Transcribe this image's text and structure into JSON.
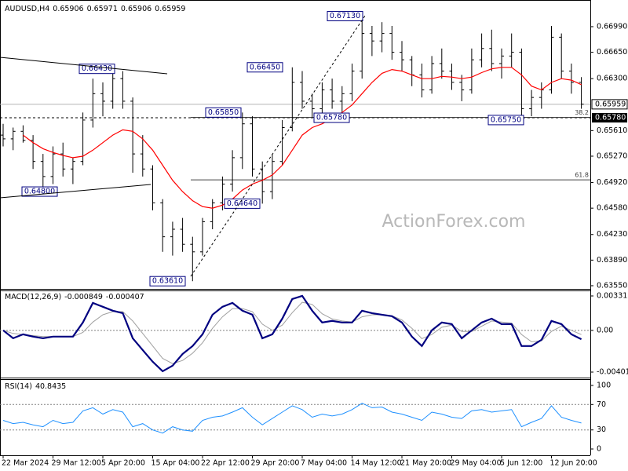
{
  "chart_data": [
    {
      "type": "ohlc",
      "title": "AUDUSD,H4",
      "header_values": [
        0.65906,
        0.65971,
        0.65906,
        0.65959
      ],
      "color": "#000000",
      "open": [
        0.6555,
        0.655,
        0.656,
        0.6548,
        0.652,
        0.65,
        0.653,
        0.651,
        0.652,
        0.6575,
        0.661,
        0.66,
        0.663,
        0.66,
        0.653,
        0.651,
        0.6465,
        0.642,
        0.643,
        0.641,
        0.64,
        0.644,
        0.6465,
        0.649,
        0.6525,
        0.657,
        0.651,
        0.648,
        0.652,
        0.6565,
        0.6625,
        0.66,
        0.659,
        0.6615,
        0.66,
        0.661,
        0.664,
        0.669,
        0.668,
        0.669,
        0.6665,
        0.6655,
        0.6635,
        0.6615,
        0.665,
        0.664,
        0.6625,
        0.6615,
        0.6655,
        0.667,
        0.665,
        0.666,
        0.6665,
        0.659,
        0.6605,
        0.6615,
        0.6685,
        0.664,
        0.6625
      ],
      "high": [
        0.657,
        0.6565,
        0.6568,
        0.6555,
        0.653,
        0.654,
        0.6545,
        0.6525,
        0.6585,
        0.663,
        0.6625,
        0.6643,
        0.664,
        0.6605,
        0.6555,
        0.6515,
        0.647,
        0.644,
        0.6445,
        0.642,
        0.6445,
        0.647,
        0.65,
        0.6535,
        0.6585,
        0.658,
        0.652,
        0.653,
        0.6575,
        0.6645,
        0.664,
        0.661,
        0.6625,
        0.663,
        0.662,
        0.665,
        0.6713,
        0.67,
        0.6705,
        0.67,
        0.668,
        0.666,
        0.665,
        0.666,
        0.667,
        0.665,
        0.6635,
        0.667,
        0.669,
        0.6695,
        0.667,
        0.669,
        0.667,
        0.6615,
        0.6625,
        0.67,
        0.669,
        0.665,
        0.6632
      ],
      "low": [
        0.654,
        0.6535,
        0.6545,
        0.651,
        0.648,
        0.649,
        0.65,
        0.649,
        0.6515,
        0.6565,
        0.658,
        0.659,
        0.659,
        0.6505,
        0.65,
        0.6455,
        0.64,
        0.6395,
        0.64,
        0.6361,
        0.6395,
        0.643,
        0.6455,
        0.648,
        0.651,
        0.65,
        0.6464,
        0.647,
        0.6515,
        0.656,
        0.659,
        0.6578,
        0.658,
        0.659,
        0.6585,
        0.66,
        0.663,
        0.666,
        0.6665,
        0.6655,
        0.664,
        0.662,
        0.6605,
        0.661,
        0.663,
        0.6615,
        0.66,
        0.661,
        0.6645,
        0.664,
        0.663,
        0.6645,
        0.6575,
        0.658,
        0.659,
        0.661,
        0.663,
        0.661,
        0.659
      ],
      "close": [
        0.655,
        0.656,
        0.6548,
        0.652,
        0.65,
        0.653,
        0.651,
        0.652,
        0.6575,
        0.661,
        0.66,
        0.663,
        0.66,
        0.653,
        0.651,
        0.6465,
        0.642,
        0.643,
        0.641,
        0.64,
        0.644,
        0.6465,
        0.649,
        0.6525,
        0.657,
        0.651,
        0.648,
        0.652,
        0.6565,
        0.6625,
        0.66,
        0.659,
        0.6615,
        0.66,
        0.661,
        0.664,
        0.669,
        0.668,
        0.669,
        0.6665,
        0.6655,
        0.6635,
        0.6615,
        0.665,
        0.664,
        0.6625,
        0.6615,
        0.6655,
        0.667,
        0.665,
        0.666,
        0.6665,
        0.659,
        0.6605,
        0.6615,
        0.6685,
        0.664,
        0.6625,
        0.6596
      ],
      "ma": {
        "color": "#ff0000",
        "values": [
          null,
          null,
          0.6555,
          0.6545,
          0.6537,
          0.6532,
          0.6528,
          0.6525,
          0.6527,
          0.6535,
          0.6545,
          0.6555,
          0.6562,
          0.656,
          0.655,
          0.6535,
          0.6515,
          0.6495,
          0.648,
          0.6468,
          0.646,
          0.6458,
          0.6462,
          0.647,
          0.6482,
          0.649,
          0.6495,
          0.6502,
          0.6515,
          0.6535,
          0.6555,
          0.6565,
          0.657,
          0.6577,
          0.6585,
          0.6595,
          0.661,
          0.6625,
          0.6637,
          0.6642,
          0.664,
          0.6635,
          0.663,
          0.663,
          0.6633,
          0.6632,
          0.663,
          0.6632,
          0.6638,
          0.6643,
          0.6645,
          0.6645,
          0.6635,
          0.662,
          0.6615,
          0.6625,
          0.663,
          0.6628,
          0.6622
        ]
      },
      "ylim": [
        0.63508,
        0.67344
      ],
      "yticks": [
        {
          "value": 0.6699,
          "label": "0.66990"
        },
        {
          "value": 0.6665,
          "label": "0.66650"
        },
        {
          "value": 0.663,
          "label": "0.66300"
        },
        {
          "value": 0.6561,
          "label": "0.65610"
        },
        {
          "value": 0.6527,
          "label": "0.65270"
        },
        {
          "value": 0.6492,
          "label": "0.64920"
        },
        {
          "value": 0.6458,
          "label": "0.64580"
        },
        {
          "value": 0.6423,
          "label": "0.64230"
        },
        {
          "value": 0.6389,
          "label": "0.63890"
        },
        {
          "value": 0.6355,
          "label": "0.63550"
        }
      ],
      "last_price": {
        "value": 0.65959,
        "label": "0.65959"
      },
      "support": {
        "value": 0.6578,
        "label": "0.65780"
      },
      "fib": [
        {
          "ratio": 38.2,
          "price": 0.65785
        },
        {
          "ratio": 61.8,
          "price": 0.64955
        }
      ],
      "annotations": [
        {
          "value": 0.6643,
          "label": "0.66430"
        },
        {
          "value": 0.648,
          "label": "0.64800"
        },
        {
          "value": 0.6361,
          "label": "0.63610"
        },
        {
          "value": 0.6464,
          "label": "0.64640"
        },
        {
          "value": 0.6585,
          "label": "0.65850"
        },
        {
          "value": 0.6645,
          "label": "0.66450"
        },
        {
          "value": 0.6578,
          "label": "0.65780"
        },
        {
          "value": 0.6713,
          "label": "0.67130"
        },
        {
          "value": 0.6575,
          "label": "0.65750"
        }
      ],
      "watermark": "ActionForex.com"
    },
    {
      "type": "line",
      "title": "MACD(12,26,9)",
      "header_values": [
        -0.000849,
        -0.000407
      ],
      "series": [
        {
          "color": "#a0a0a0",
          "values": [
            0,
            -0.0003,
            -0.0004,
            -0.0005,
            -0.0006,
            -0.0006,
            -0.0006,
            -0.0006,
            -0.0002,
            0.0008,
            0.0015,
            0.0018,
            0.0018,
            0.0009,
            -0.0003,
            -0.0015,
            -0.0027,
            -0.0032,
            -0.0029,
            -0.0022,
            -0.0012,
            0.0002,
            0.0013,
            0.0021,
            0.0021,
            0.0018,
            0.0006,
            0,
            0.0005,
            0.0017,
            0.0027,
            0.0025,
            0.0016,
            0.0011,
            0.0009,
            0.0008,
            0.0013,
            0.0015,
            0.0015,
            0.0014,
            0.001,
            0.0002,
            -0.0008,
            -0.0004,
            0.0003,
            0.0005,
            -0.0001,
            -0.0001,
            0.0004,
            0.0009,
            0.0008,
            0.0007,
            -0.0004,
            -0.0011,
            -0.001,
            -0.0001,
            0.0004,
            0,
            -0.000407
          ]
        },
        {
          "color": "#000080",
          "values": [
            0,
            -0.00076,
            -0.00038,
            -0.0006,
            -0.00076,
            -0.0006,
            -0.0006,
            -0.0006,
            0.00076,
            0.00264,
            0.00227,
            0.00189,
            0.00166,
            -0.00076,
            -0.00189,
            -0.00302,
            -0.00393,
            -0.0034,
            -0.00227,
            -0.00151,
            -0.00038,
            0.00151,
            0.00227,
            0.00264,
            0.00189,
            0.00151,
            -0.00076,
            -0.00038,
            0.00113,
            0.00302,
            0.00332,
            0.00189,
            0.00076,
            0.00091,
            0.00076,
            0.00076,
            0.00189,
            0.00166,
            0.00151,
            0.00136,
            0.00076,
            -0.0006,
            -0.00151,
            0,
            0.00076,
            0.0006,
            -0.00076,
            0,
            0.00076,
            0.00113,
            0.0006,
            0.0006,
            -0.00151,
            -0.00151,
            -0.00091,
            0.00091,
            0.0006,
            -0.00038,
            -0.000849
          ]
        }
      ],
      "ylim": [
        -0.004545,
        0.003842
      ],
      "yticks": [
        0.003313,
        {
          "value": 0,
          "label": "0.00"
        },
        -0.004016
      ],
      "levels": [
        0
      ]
    },
    {
      "type": "line",
      "title": "RSI(14)",
      "header_values": [
        40.8435
      ],
      "series": [
        {
          "color": "#1e90ff",
          "values": [
            45,
            40,
            42,
            38,
            35,
            45,
            40,
            42,
            60,
            65,
            55,
            62,
            58,
            35,
            40,
            30,
            25,
            35,
            30,
            28,
            45,
            50,
            52,
            58,
            65,
            50,
            38,
            48,
            58,
            68,
            62,
            50,
            55,
            52,
            55,
            62,
            72,
            65,
            66,
            58,
            55,
            50,
            45,
            58,
            55,
            50,
            48,
            60,
            62,
            58,
            60,
            62,
            35,
            42,
            48,
            68,
            50,
            45,
            40.8435
          ]
        }
      ],
      "ylim": [
        -9.9,
        109.9
      ],
      "yticks": [
        100,
        70,
        30,
        0
      ],
      "levels": [
        70,
        30
      ],
      "categories": [
        "22 Mar 2024",
        null,
        null,
        null,
        null,
        "29 Mar 12:00",
        null,
        null,
        null,
        null,
        "5 Apr 20:00",
        null,
        null,
        null,
        null,
        "15 Apr 04:00",
        null,
        null,
        null,
        null,
        "22 Apr 12:00",
        null,
        null,
        null,
        null,
        "29 Apr 20:00",
        null,
        null,
        null,
        null,
        "7 May 04:00",
        null,
        null,
        null,
        null,
        "14 May 12:00",
        null,
        null,
        null,
        null,
        "21 May 20:00",
        null,
        null,
        null,
        null,
        "29 May 04:00",
        null,
        null,
        null,
        null,
        "5 Jun 12:00",
        null,
        null,
        null,
        null,
        "12 Jun 20:00",
        null,
        null,
        null
      ]
    }
  ]
}
